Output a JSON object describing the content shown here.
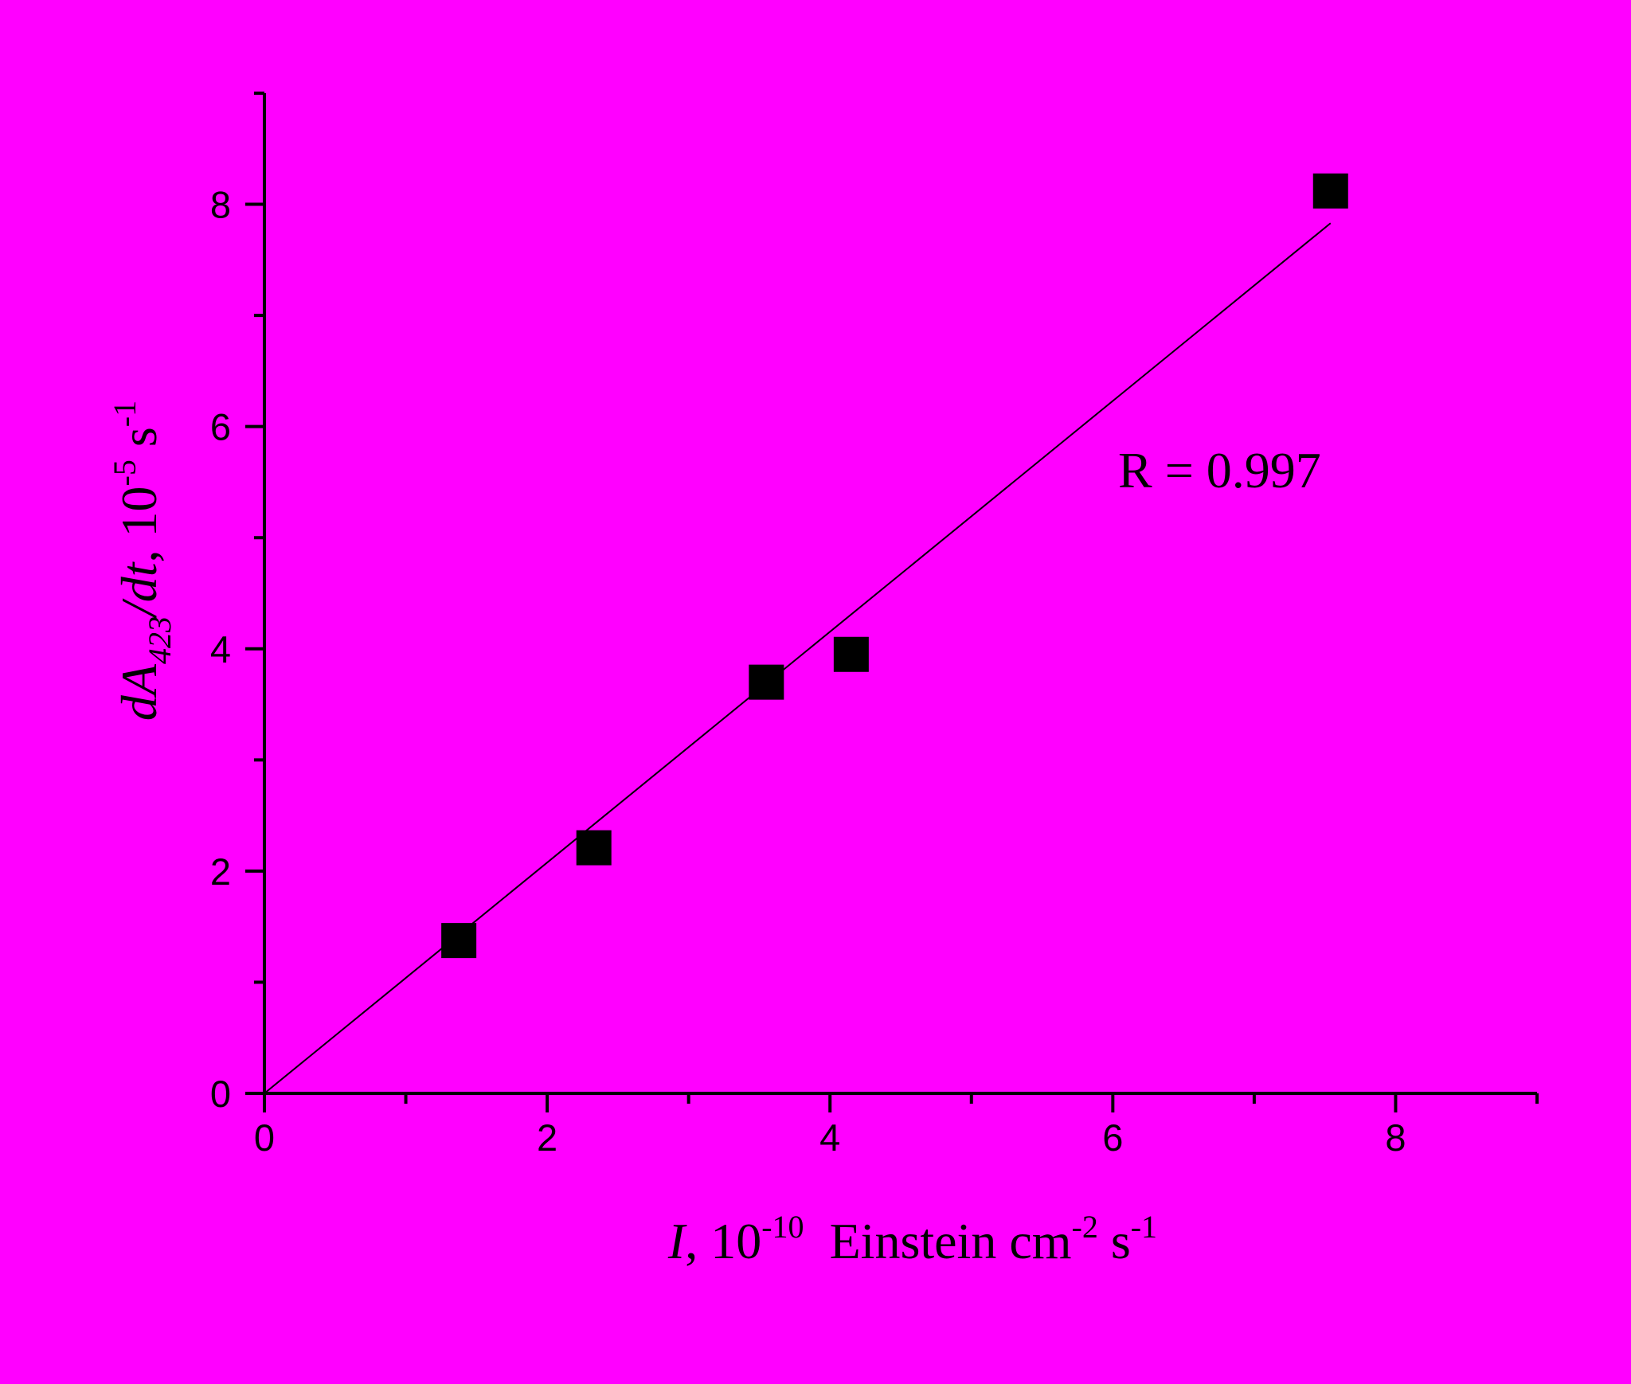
{
  "chart_data": {
    "type": "scatter",
    "xlabel_parts": [
      "I",
      ", 10",
      "-10",
      "  Einstein cm",
      "-2",
      " s",
      "-1"
    ],
    "ylabel_parts": [
      "dA",
      "423",
      "/dt",
      ", 10",
      "-5",
      " s",
      "-1"
    ],
    "annotation": "R = 0.997",
    "x": [
      1.375,
      2.33,
      3.55,
      4.15,
      7.54
    ],
    "series": [
      {
        "color": "#000000",
        "values": [
          1.375,
          2.21,
          3.7,
          3.95,
          8.12
        ]
      }
    ],
    "fit": {
      "x": [
        0,
        7.54
      ],
      "values": [
        0,
        7.83
      ],
      "color": "#000000"
    },
    "xlim": [
      0,
      9
    ],
    "ylim": [
      0,
      9
    ],
    "xticks": [
      0,
      2,
      4,
      6,
      8
    ],
    "yticks": [
      0,
      2,
      4,
      6,
      8
    ],
    "xminor": [
      1,
      3,
      5,
      7,
      9
    ],
    "yminor": [
      1,
      3,
      5,
      7,
      9
    ],
    "background": "#ff00ff"
  }
}
